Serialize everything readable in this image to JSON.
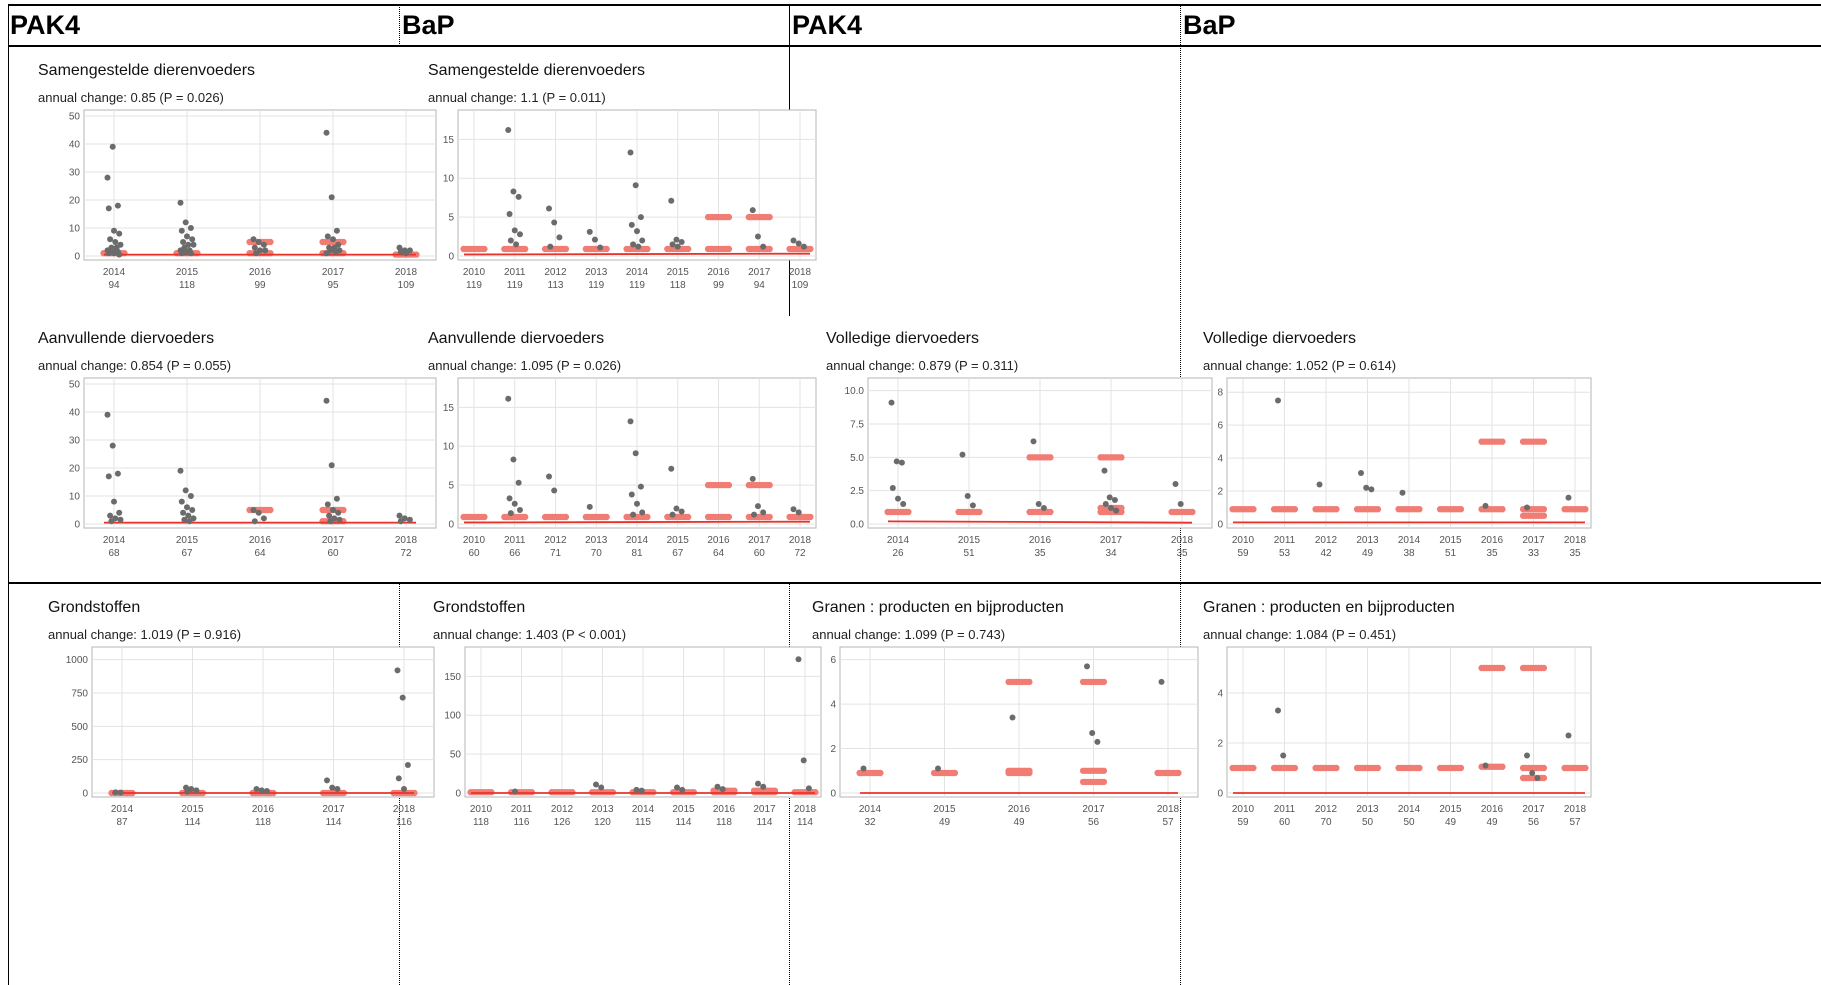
{
  "column_headers": [
    "PAK4",
    "BaP",
    "PAK4",
    "BaP"
  ],
  "colors": {
    "data_point": "#6b6b6b",
    "censored_point": "#f17c73",
    "trend_line": "#e8332b",
    "grid": "#e3e3e3"
  },
  "chart_data": [
    {
      "type": "scatter",
      "title": "Samengestelde dierenvoeders",
      "subtitle": "annual change: 0.85 (P = 0.026)",
      "categories": [
        "2014",
        "2015",
        "2016",
        "2017",
        "2018"
      ],
      "n": [
        "94",
        "118",
        "99",
        "95",
        "109"
      ],
      "yticks": [
        0,
        10,
        20,
        30,
        40,
        50
      ],
      "ylim": [
        0,
        50
      ],
      "trend": [
        0.5,
        0.5
      ],
      "grid": true,
      "points": {
        "2014": [
          28,
          39,
          18,
          17,
          9,
          8,
          6,
          5,
          4,
          3,
          3,
          2,
          2,
          1.5,
          1,
          1,
          0.5
        ],
        "2015": [
          19,
          12,
          10,
          9,
          7,
          6,
          5,
          4,
          4,
          3,
          2,
          2,
          1.5,
          1,
          1
        ],
        "2016": [
          6,
          5,
          4,
          3,
          2,
          2,
          1
        ],
        "2017": [
          44,
          21,
          9,
          7,
          6,
          4,
          3,
          3,
          2,
          2,
          1.5,
          1
        ],
        "2018": [
          3,
          2,
          2,
          1.5,
          1
        ]
      },
      "censored": {
        "2016": [
          5,
          1
        ],
        "2017": [
          5,
          1
        ],
        "2014": [
          1
        ],
        "2015": [
          1
        ],
        "2018": [
          0.5
        ]
      }
    },
    {
      "type": "scatter",
      "title": "Samengestelde dierenvoeders",
      "subtitle": "annual change: 1.1 (P = 0.011)",
      "categories": [
        "2010",
        "2011",
        "2012",
        "2013",
        "2014",
        "2015",
        "2016",
        "2017",
        "2018"
      ],
      "n": [
        "119",
        "119",
        "113",
        "119",
        "119",
        "118",
        "99",
        "94",
        "109"
      ],
      "yticks": [
        0,
        5,
        10,
        15
      ],
      "ylim": [
        0,
        18
      ],
      "trend": [
        0.2,
        0.3
      ],
      "grid": true,
      "points": {
        "2011": [
          16.2,
          8.3,
          7.6,
          5.4,
          3.3,
          2.8,
          2,
          1.5
        ],
        "2012": [
          6.1,
          4.3,
          2.4,
          1.2
        ],
        "2013": [
          3.1,
          2.1,
          1.1
        ],
        "2014": [
          13.3,
          9.1,
          5,
          4,
          3.2,
          2,
          1.5,
          1.2
        ],
        "2015": [
          7.1,
          2.1,
          1.8,
          1.5,
          1.2
        ],
        "2017": [
          5.9,
          2.5,
          1.2
        ],
        "2018": [
          2,
          1.6,
          1.2
        ]
      },
      "censored": {
        "2010": [
          0.9
        ],
        "2011": [
          0.9
        ],
        "2012": [
          0.9
        ],
        "2013": [
          0.9
        ],
        "2014": [
          0.9
        ],
        "2015": [
          0.9
        ],
        "2016": [
          5,
          0.9
        ],
        "2017": [
          5,
          0.9
        ],
        "2018": [
          0.9
        ]
      }
    },
    {
      "type": "scatter",
      "title": "Aanvullende diervoeders",
      "subtitle": "annual change: 0.854 (P = 0.055)",
      "categories": [
        "2014",
        "2015",
        "2016",
        "2017",
        "2018"
      ],
      "n": [
        "68",
        "67",
        "64",
        "60",
        "72"
      ],
      "yticks": [
        0,
        10,
        20,
        30,
        40,
        50
      ],
      "ylim": [
        0,
        50
      ],
      "trend": [
        0.5,
        0.5
      ],
      "grid": true,
      "points": {
        "2014": [
          39,
          28,
          18,
          17,
          8,
          4,
          3,
          2,
          1.5,
          1
        ],
        "2015": [
          19,
          12,
          10,
          8,
          6,
          5,
          4,
          3,
          2,
          1.5,
          1
        ],
        "2016": [
          5,
          4,
          2,
          1
        ],
        "2017": [
          44,
          21,
          9,
          7,
          5,
          4,
          3,
          2,
          1.5,
          1
        ],
        "2018": [
          3,
          2,
          1.5,
          1
        ]
      },
      "censored": {
        "2016": [
          5
        ],
        "2017": [
          5,
          1
        ]
      }
    },
    {
      "type": "scatter",
      "title": "Aanvullende diervoeders",
      "subtitle": "annual change: 1.095 (P = 0.026)",
      "categories": [
        "2010",
        "2011",
        "2012",
        "2013",
        "2014",
        "2015",
        "2016",
        "2017",
        "2018"
      ],
      "n": [
        "60",
        "66",
        "71",
        "70",
        "81",
        "67",
        "64",
        "60",
        "72"
      ],
      "yticks": [
        0,
        5,
        10,
        15
      ],
      "ylim": [
        0,
        18
      ],
      "trend": [
        0.2,
        0.3
      ],
      "grid": true,
      "points": {
        "2011": [
          16.1,
          8.3,
          5.3,
          3.3,
          2.6,
          1.8,
          1.4
        ],
        "2012": [
          6.1,
          4.3
        ],
        "2013": [
          2.2
        ],
        "2014": [
          13.2,
          9.1,
          4.8,
          3.8,
          2.6,
          1.5,
          1.2
        ],
        "2015": [
          7.1,
          2,
          1.6,
          1.2
        ],
        "2017": [
          5.8,
          2.3,
          1.5,
          1.2
        ],
        "2018": [
          1.9,
          1.5
        ]
      },
      "censored": {
        "2010": [
          0.9
        ],
        "2011": [
          0.9
        ],
        "2012": [
          0.9
        ],
        "2013": [
          0.9
        ],
        "2014": [
          0.9
        ],
        "2015": [
          0.9
        ],
        "2016": [
          5,
          0.9
        ],
        "2017": [
          5,
          0.9
        ],
        "2018": [
          0.9
        ]
      }
    },
    {
      "type": "scatter",
      "title": "Volledige diervoeders",
      "subtitle": "annual change: 0.879 (P = 0.311)",
      "categories": [
        "2014",
        "2015",
        "2016",
        "2017",
        "2018"
      ],
      "n": [
        "26",
        "51",
        "35",
        "34",
        "35"
      ],
      "yticks": [
        0.0,
        2.5,
        5.0,
        7.5,
        10.0
      ],
      "ytick_labels": [
        "0.0",
        "2.5",
        "5.0",
        "7.5",
        "10.0"
      ],
      "ylim": [
        0,
        10.5
      ],
      "trend": [
        0.2,
        0.1
      ],
      "grid": true,
      "points": {
        "2014": [
          9.1,
          4.7,
          4.6,
          2.7,
          1.9,
          1.5
        ],
        "2015": [
          5.2,
          2.1,
          1.4
        ],
        "2016": [
          6.2,
          1.5,
          1.2
        ],
        "2017": [
          4,
          2,
          1.8,
          1.5,
          1.2,
          1
        ],
        "2018": [
          3,
          1.5
        ]
      },
      "censored": {
        "2014": [
          0.9
        ],
        "2015": [
          0.9
        ],
        "2016": [
          5,
          0.9
        ],
        "2017": [
          5,
          1.2,
          0.9
        ],
        "2018": [
          0.9
        ]
      }
    },
    {
      "type": "scatter",
      "title": "Volledige diervoeders",
      "subtitle": "annual change: 1.052 (P = 0.614)",
      "categories": [
        "2010",
        "2011",
        "2012",
        "2013",
        "2014",
        "2015",
        "2016",
        "2017",
        "2018"
      ],
      "n": [
        "59",
        "53",
        "42",
        "49",
        "38",
        "51",
        "35",
        "33",
        "35"
      ],
      "yticks": [
        0,
        2,
        4,
        6,
        8
      ],
      "ylim": [
        0,
        8.5
      ],
      "trend": [
        0.1,
        0.1
      ],
      "grid": true,
      "points": {
        "2011": [
          7.5
        ],
        "2012": [
          2.4
        ],
        "2013": [
          3.1,
          2.2,
          2.1
        ],
        "2014": [
          1.9
        ],
        "2016": [
          1.1
        ],
        "2017": [
          1
        ],
        "2018": [
          1.6
        ]
      },
      "censored": {
        "2010": [
          0.9
        ],
        "2011": [
          0.9
        ],
        "2012": [
          0.9
        ],
        "2013": [
          0.9
        ],
        "2014": [
          0.9
        ],
        "2015": [
          0.9
        ],
        "2016": [
          5,
          0.9
        ],
        "2017": [
          5,
          0.9,
          0.5
        ],
        "2018": [
          0.9
        ]
      }
    },
    {
      "type": "scatter",
      "title": "Grondstoffen",
      "subtitle": "annual change: 1.019 (P = 0.916)",
      "categories": [
        "2014",
        "2015",
        "2016",
        "2017",
        "2018"
      ],
      "n": [
        "87",
        "114",
        "118",
        "114",
        "116"
      ],
      "yticks": [
        0,
        250,
        500,
        750,
        1000
      ],
      "ylim": [
        0,
        1050
      ],
      "trend": [
        0,
        0
      ],
      "grid": true,
      "points": {
        "2014": [
          5,
          3
        ],
        "2015": [
          40,
          30,
          20,
          10
        ],
        "2016": [
          30,
          20,
          15
        ],
        "2017": [
          95,
          40,
          30
        ],
        "2018": [
          920,
          715,
          210,
          110,
          30
        ]
      },
      "censored": {
        "2014": [
          0
        ],
        "2015": [
          0
        ],
        "2016": [
          0
        ],
        "2017": [
          0
        ],
        "2018": [
          0
        ]
      }
    },
    {
      "type": "scatter",
      "title": "Grondstoffen",
      "subtitle": "annual change: 1.403 (P < 0.001)",
      "categories": [
        "2010",
        "2011",
        "2012",
        "2013",
        "2014",
        "2015",
        "2016",
        "2017",
        "2018"
      ],
      "n": [
        "118",
        "116",
        "126",
        "120",
        "115",
        "114",
        "118",
        "114",
        "114"
      ],
      "yticks": [
        0,
        50,
        100,
        150
      ],
      "ylim": [
        0,
        180
      ],
      "trend": [
        0,
        0
      ],
      "grid": true,
      "points": {
        "2011": [
          2
        ],
        "2013": [
          11,
          7
        ],
        "2014": [
          4,
          3
        ],
        "2015": [
          7,
          4
        ],
        "2016": [
          8,
          5
        ],
        "2017": [
          12,
          8
        ],
        "2018": [
          172,
          42,
          6
        ]
      },
      "censored": {
        "2010": [
          1
        ],
        "2011": [
          1
        ],
        "2012": [
          1
        ],
        "2013": [
          1
        ],
        "2014": [
          1
        ],
        "2015": [
          1
        ],
        "2016": [
          3,
          1
        ],
        "2017": [
          3,
          1
        ],
        "2018": [
          1
        ]
      }
    },
    {
      "type": "scatter",
      "title": "Granen : producten en bijproducten",
      "subtitle": "annual change: 1.099 (P = 0.743)",
      "categories": [
        "2014",
        "2015",
        "2016",
        "2017",
        "2018"
      ],
      "n": [
        "32",
        "49",
        "49",
        "56",
        "57"
      ],
      "yticks": [
        0,
        2,
        4,
        6
      ],
      "ylim": [
        0,
        6.3
      ],
      "trend": [
        0,
        0
      ],
      "grid": true,
      "points": {
        "2014": [
          1.1
        ],
        "2015": [
          1.1
        ],
        "2016": [
          3.4
        ],
        "2017": [
          5.7,
          2.7,
          2.3
        ],
        "2018": [
          5
        ]
      },
      "censored": {
        "2014": [
          0.9
        ],
        "2015": [
          0.9
        ],
        "2016": [
          5,
          1,
          0.9
        ],
        "2017": [
          5,
          1,
          0.5
        ],
        "2018": [
          0.9
        ]
      }
    },
    {
      "type": "scatter",
      "title": "Granen : producten en bijproducten",
      "subtitle": "annual change: 1.084 (P = 0.451)",
      "categories": [
        "2010",
        "2011",
        "2012",
        "2013",
        "2014",
        "2015",
        "2016",
        "2017",
        "2018"
      ],
      "n": [
        "59",
        "60",
        "70",
        "50",
        "50",
        "49",
        "49",
        "56",
        "57"
      ],
      "yticks": [
        0,
        2,
        4
      ],
      "ylim": [
        0,
        5.6
      ],
      "trend": [
        0,
        0
      ],
      "grid": true,
      "points": {
        "2011": [
          3.3,
          1.5
        ],
        "2016": [
          1.1
        ],
        "2017": [
          1.5,
          0.8,
          0.6
        ],
        "2018": [
          2.3
        ]
      },
      "censored": {
        "2010": [
          1
        ],
        "2011": [
          1
        ],
        "2012": [
          1
        ],
        "2013": [
          1
        ],
        "2014": [
          1
        ],
        "2015": [
          1
        ],
        "2016": [
          5,
          1.05
        ],
        "2017": [
          5,
          1,
          0.6
        ],
        "2018": [
          1
        ]
      }
    }
  ]
}
